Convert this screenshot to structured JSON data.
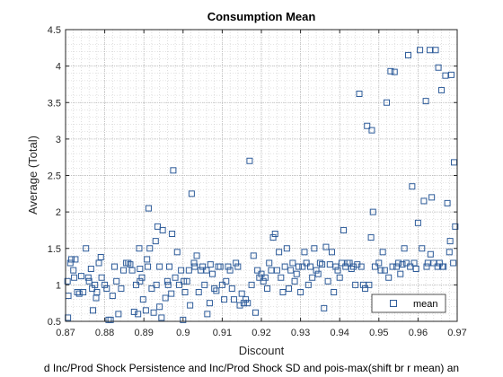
{
  "chart_data": {
    "type": "scatter",
    "title": "Consumption Mean",
    "xlabel": "Discount",
    "ylabel": "Average (Total)",
    "footer": "d Inc/Prod Shock Persistence and Inc/Prod Shock SD and pois-max(shift br r mean) an",
    "xlim": [
      0.87,
      0.97
    ],
    "ylim": [
      0.5,
      4.5
    ],
    "xticks": [
      "0.87",
      "0.88",
      "0.89",
      "0.9",
      "0.91",
      "0.92",
      "0.93",
      "0.94",
      "0.95",
      "0.96",
      "0.97"
    ],
    "yticks": [
      "0.5",
      "1",
      "1.5",
      "2",
      "2.5",
      "3",
      "3.5",
      "4",
      "4.5"
    ],
    "grid": true,
    "legend_position": "bottom-right",
    "marker_color": "#2e5c9a",
    "series": [
      {
        "name": "mean",
        "marker": "square",
        "points": [
          [
            0.8705,
            1.05
          ],
          [
            0.8707,
            0.85
          ],
          [
            0.8706,
            0.55
          ],
          [
            0.8712,
            1.3
          ],
          [
            0.8715,
            1.35
          ],
          [
            0.872,
            1.2
          ],
          [
            0.8722,
            1.1
          ],
          [
            0.8725,
            1.35
          ],
          [
            0.873,
            0.9
          ],
          [
            0.8735,
            0.88
          ],
          [
            0.874,
            1.12
          ],
          [
            0.8745,
            0.9
          ],
          [
            0.8752,
            1.5
          ],
          [
            0.8758,
            1.1
          ],
          [
            0.876,
            1.05
          ],
          [
            0.8765,
            1.22
          ],
          [
            0.8768,
            0.95
          ],
          [
            0.877,
            0.65
          ],
          [
            0.8775,
            1.0
          ],
          [
            0.8778,
            0.82
          ],
          [
            0.878,
            0.9
          ],
          [
            0.8785,
            1.3
          ],
          [
            0.879,
            1.38
          ],
          [
            0.8792,
            1.1
          ],
          [
            0.88,
            1.0
          ],
          [
            0.8805,
            0.95
          ],
          [
            0.881,
            0.52
          ],
          [
            0.8815,
            0.52
          ],
          [
            0.882,
            0.85
          ],
          [
            0.8825,
            1.25
          ],
          [
            0.883,
            1.05
          ],
          [
            0.8835,
            0.6
          ],
          [
            0.8842,
            0.95
          ],
          [
            0.8848,
            1.2
          ],
          [
            0.8855,
            1.3
          ],
          [
            0.886,
            1.3
          ],
          [
            0.8865,
            1.28
          ],
          [
            0.887,
            1.2
          ],
          [
            0.8875,
            0.63
          ],
          [
            0.888,
            1.0
          ],
          [
            0.8885,
            0.6
          ],
          [
            0.8888,
            1.5
          ],
          [
            0.889,
            1.22
          ],
          [
            0.889,
            1.05
          ],
          [
            0.8895,
            1.1
          ],
          [
            0.8898,
            0.8
          ],
          [
            0.8905,
            0.65
          ],
          [
            0.8908,
            1.35
          ],
          [
            0.891,
            1.25
          ],
          [
            0.8912,
            2.05
          ],
          [
            0.8915,
            1.5
          ],
          [
            0.892,
            0.95
          ],
          [
            0.8925,
            0.62
          ],
          [
            0.893,
            1.6
          ],
          [
            0.8932,
            1.0
          ],
          [
            0.8935,
            1.8
          ],
          [
            0.894,
            1.25
          ],
          [
            0.894,
            0.7
          ],
          [
            0.8945,
            0.55
          ],
          [
            0.8948,
            1.75
          ],
          [
            0.8955,
            0.82
          ],
          [
            0.896,
            1.05
          ],
          [
            0.8962,
            1.0
          ],
          [
            0.8965,
            1.25
          ],
          [
            0.897,
            0.88
          ],
          [
            0.8972,
            1.7
          ],
          [
            0.8975,
            2.57
          ],
          [
            0.898,
            1.1
          ],
          [
            0.8985,
            1.45
          ],
          [
            0.899,
            1.0
          ],
          [
            0.8995,
            1.2
          ],
          [
            0.9,
            0.52
          ],
          [
            0.9002,
            1.05
          ],
          [
            0.9005,
            0.9
          ],
          [
            0.901,
            1.05
          ],
          [
            0.9015,
            1.2
          ],
          [
            0.9018,
            0.72
          ],
          [
            0.9022,
            2.25
          ],
          [
            0.9028,
            1.3
          ],
          [
            0.903,
            1.25
          ],
          [
            0.9035,
            1.4
          ],
          [
            0.904,
            0.9
          ],
          [
            0.9045,
            1.2
          ],
          [
            0.905,
            1.25
          ],
          [
            0.9055,
            1.0
          ],
          [
            0.906,
            1.2
          ],
          [
            0.9062,
            0.6
          ],
          [
            0.9068,
            0.75
          ],
          [
            0.907,
            1.28
          ],
          [
            0.9075,
            1.15
          ],
          [
            0.908,
            0.95
          ],
          [
            0.9085,
            0.92
          ],
          [
            0.909,
            1.25
          ],
          [
            0.9095,
            1.25
          ],
          [
            0.91,
            1.0
          ],
          [
            0.9105,
            0.8
          ],
          [
            0.911,
            1.05
          ],
          [
            0.9115,
            1.25
          ],
          [
            0.912,
            1.2
          ],
          [
            0.9125,
            0.95
          ],
          [
            0.913,
            0.8
          ],
          [
            0.9135,
            1.3
          ],
          [
            0.914,
            1.25
          ],
          [
            0.9145,
            0.72
          ],
          [
            0.915,
            0.88
          ],
          [
            0.9155,
            0.75
          ],
          [
            0.916,
            0.8
          ],
          [
            0.9165,
            0.75
          ],
          [
            0.917,
            2.7
          ],
          [
            0.9175,
            1.0
          ],
          [
            0.918,
            1.4
          ],
          [
            0.9185,
            0.62
          ],
          [
            0.919,
            1.2
          ],
          [
            0.9195,
            1.1
          ],
          [
            0.92,
            1.15
          ],
          [
            0.9205,
            1.05
          ],
          [
            0.921,
            1.1
          ],
          [
            0.9215,
            0.95
          ],
          [
            0.922,
            1.3
          ],
          [
            0.9225,
            1.2
          ],
          [
            0.923,
            1.65
          ],
          [
            0.9235,
            1.7
          ],
          [
            0.924,
            1.2
          ],
          [
            0.9245,
            1.45
          ],
          [
            0.925,
            1.1
          ],
          [
            0.9255,
            0.9
          ],
          [
            0.926,
            1.25
          ],
          [
            0.9265,
            1.5
          ],
          [
            0.927,
            0.95
          ],
          [
            0.9275,
            1.2
          ],
          [
            0.928,
            1.3
          ],
          [
            0.9285,
            1.05
          ],
          [
            0.929,
            1.15
          ],
          [
            0.9295,
            1.25
          ],
          [
            0.93,
            0.9
          ],
          [
            0.9305,
            1.25
          ],
          [
            0.931,
            1.45
          ],
          [
            0.9315,
            1.3
          ],
          [
            0.932,
            1.0
          ],
          [
            0.9325,
            1.25
          ],
          [
            0.933,
            1.1
          ],
          [
            0.9335,
            1.5
          ],
          [
            0.934,
            1.2
          ],
          [
            0.9345,
            1.15
          ],
          [
            0.935,
            1.3
          ],
          [
            0.9355,
            1.28
          ],
          [
            0.936,
            0.68
          ],
          [
            0.9365,
            1.52
          ],
          [
            0.937,
            1.05
          ],
          [
            0.9375,
            1.28
          ],
          [
            0.938,
            1.45
          ],
          [
            0.9385,
            0.9
          ],
          [
            0.939,
            1.25
          ],
          [
            0.9395,
            1.2
          ],
          [
            0.94,
            1.1
          ],
          [
            0.9405,
            1.3
          ],
          [
            0.941,
            1.75
          ],
          [
            0.9415,
            1.25
          ],
          [
            0.942,
            1.3
          ],
          [
            0.9425,
            1.3
          ],
          [
            0.943,
            1.22
          ],
          [
            0.9435,
            1.25
          ],
          [
            0.944,
            1.0
          ],
          [
            0.9445,
            1.28
          ],
          [
            0.945,
            3.62
          ],
          [
            0.9455,
            1.25
          ],
          [
            0.946,
            1.0
          ],
          [
            0.9465,
            0.95
          ],
          [
            0.947,
            3.18
          ],
          [
            0.9475,
            1.0
          ],
          [
            0.948,
            1.65
          ],
          [
            0.9482,
            3.12
          ],
          [
            0.9485,
            2.0
          ],
          [
            0.949,
            1.25
          ],
          [
            0.9495,
            0.78
          ],
          [
            0.95,
            1.3
          ],
          [
            0.9505,
            1.2
          ],
          [
            0.951,
            1.45
          ],
          [
            0.9515,
            1.2
          ],
          [
            0.952,
            3.5
          ],
          [
            0.9525,
            1.1
          ],
          [
            0.953,
            3.93
          ],
          [
            0.9535,
            1.25
          ],
          [
            0.954,
            3.92
          ],
          [
            0.9545,
            1.25
          ],
          [
            0.955,
            1.3
          ],
          [
            0.9555,
            1.15
          ],
          [
            0.956,
            1.28
          ],
          [
            0.9565,
            1.5
          ],
          [
            0.957,
            1.3
          ],
          [
            0.9575,
            4.15
          ],
          [
            0.958,
            1.25
          ],
          [
            0.9585,
            2.35
          ],
          [
            0.959,
            1.3
          ],
          [
            0.9595,
            1.22
          ],
          [
            0.96,
            1.85
          ],
          [
            0.9605,
            4.22
          ],
          [
            0.961,
            1.5
          ],
          [
            0.9615,
            2.15
          ],
          [
            0.962,
            3.52
          ],
          [
            0.9622,
            1.25
          ],
          [
            0.9625,
            1.3
          ],
          [
            0.963,
            4.22
          ],
          [
            0.9632,
            1.42
          ],
          [
            0.9635,
            2.2
          ],
          [
            0.964,
            1.3
          ],
          [
            0.9645,
            4.22
          ],
          [
            0.965,
            1.25
          ],
          [
            0.9652,
            3.98
          ],
          [
            0.9655,
            1.3
          ],
          [
            0.966,
            3.67
          ],
          [
            0.9662,
            1.25
          ],
          [
            0.9665,
            1.25
          ],
          [
            0.967,
            3.87
          ],
          [
            0.9675,
            2.12
          ],
          [
            0.968,
            1.45
          ],
          [
            0.9682,
            1.6
          ],
          [
            0.9685,
            3.88
          ],
          [
            0.969,
            1.3
          ],
          [
            0.9692,
            2.68
          ],
          [
            0.9695,
            1.8
          ]
        ]
      }
    ]
  }
}
